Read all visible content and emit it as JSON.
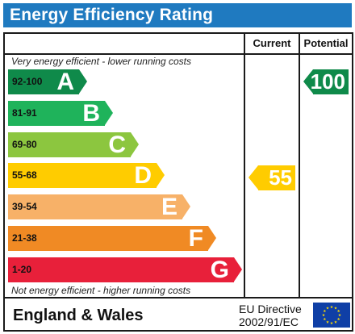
{
  "title": "Energy Efficiency Rating",
  "columns": {
    "current": "Current",
    "potential": "Potential"
  },
  "top_note": "Very energy efficient - lower running costs",
  "bottom_note": "Not energy efficient - higher running costs",
  "bands": [
    {
      "range": "92-100",
      "letter": "A",
      "color": "#0f8a4a"
    },
    {
      "range": "81-91",
      "letter": "B",
      "color": "#1fb35b"
    },
    {
      "range": "69-80",
      "letter": "C",
      "color": "#8cc63f"
    },
    {
      "range": "55-68",
      "letter": "D",
      "color": "#ffcc00"
    },
    {
      "range": "39-54",
      "letter": "E",
      "color": "#f7b168"
    },
    {
      "range": "21-38",
      "letter": "F",
      "color": "#f08a24"
    },
    {
      "range": "1-20",
      "letter": "G",
      "color": "#e8203a"
    }
  ],
  "current": {
    "value": "55",
    "band": "D",
    "color": "#ffcc00"
  },
  "potential": {
    "value": "100",
    "band": "A",
    "color": "#0f8a4a"
  },
  "footer": {
    "country": "England & Wales",
    "directive_line1": "EU Directive",
    "directive_line2": "2002/91/EC",
    "flag_color": "#0f3fa6",
    "star_color": "#ffdd00"
  }
}
